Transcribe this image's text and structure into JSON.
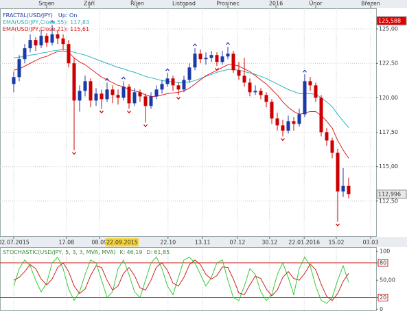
{
  "chart_data": [
    {
      "type": "candlestick",
      "fractal_label": "FRACTAL(USD/JPY)",
      "fractal_setting": "Up: On",
      "up_color": "#1a3aa8",
      "down_color": "#cc0000",
      "xlim": [
        -2.5,
        66
      ],
      "xticks": [
        {
          "value": 0,
          "label": "02.07.2015"
        },
        {
          "value": 9.6,
          "label": "17.08"
        },
        {
          "value": 15.6,
          "label": "08.09"
        },
        {
          "value": 28.1,
          "label": "22.10"
        },
        {
          "value": 34.4,
          "label": "13.11"
        },
        {
          "value": 40.75,
          "label": "07.12"
        },
        {
          "value": 46.6,
          "label": "30.12"
        },
        {
          "value": 52.9,
          "label": "22.01.2016"
        },
        {
          "value": 58.75,
          "label": "15.02"
        },
        {
          "value": 65,
          "label": "03.03"
        }
      ],
      "cursor": {
        "value": 19.75,
        "label": "22.09.2015"
      },
      "x2ticks": [
        {
          "value": 6,
          "label": "Srpen"
        },
        {
          "value": 13.75,
          "label": "Září"
        },
        {
          "value": 22.5,
          "label": "Říjen"
        },
        {
          "value": 31,
          "label": "Listopad"
        },
        {
          "value": 39,
          "label": "Prosinec"
        },
        {
          "value": 47.75,
          "label": "2016"
        },
        {
          "value": 55,
          "label": "Únor"
        },
        {
          "value": 65,
          "label": "Březen"
        }
      ],
      "ylim": [
        109.9,
        126.5
      ],
      "yticks": [
        {
          "value": 125,
          "label": "125,00"
        },
        {
          "value": 122.5,
          "label": "122,50"
        },
        {
          "value": 120,
          "label": "120,00"
        },
        {
          "value": 117.5,
          "label": "117,50"
        },
        {
          "value": 115,
          "label": "115,00"
        },
        {
          "value": 112.5,
          "label": "112,50"
        }
      ],
      "grid": true,
      "price_labels": [
        {
          "value": 125.588,
          "label": "125,588",
          "color": "#e00000"
        },
        {
          "value": 112.996,
          "label": "112,996",
          "color": "#e8e8e8"
        }
      ],
      "open": [
        121.0,
        121.5,
        122.8,
        123.6,
        124.2,
        123.8,
        124.5,
        124.0,
        124.6,
        124.3,
        123.9,
        122.5,
        119.8,
        120.5,
        121.2,
        119.8,
        120.3,
        119.9,
        120.6,
        120.2,
        120.0,
        120.8,
        119.6,
        120.4,
        120.1,
        119.4,
        120.1,
        120.6,
        121.0,
        121.4,
        120.9,
        120.6,
        121.3,
        122.2,
        123.2,
        122.8,
        122.9,
        123.1,
        122.6,
        123.0,
        123.2,
        122.0,
        121.6,
        121.1,
        120.4,
        120.5,
        120.2,
        119.7,
        118.5,
        118.0,
        117.6,
        118.3,
        118.1,
        118.8,
        121.2,
        120.9,
        120.0,
        117.5,
        116.9,
        116.0,
        113.2,
        113.6
      ],
      "high": [
        121.9,
        123.1,
        123.9,
        124.6,
        124.4,
        124.9,
        124.7,
        125.3,
        124.9,
        124.6,
        124.2,
        122.9,
        120.9,
        121.6,
        121.4,
        120.7,
        120.6,
        121.1,
        120.9,
        120.6,
        121.2,
        121.0,
        120.7,
        120.6,
        120.3,
        120.4,
        120.9,
        121.3,
        121.8,
        121.6,
        121.1,
        121.6,
        122.5,
        123.6,
        123.5,
        123.3,
        123.4,
        123.3,
        123.4,
        123.7,
        123.4,
        122.6,
        122.9,
        121.4,
        120.9,
        120.7,
        120.4,
        119.9,
        118.9,
        118.4,
        118.7,
        118.6,
        119.2,
        121.7,
        121.5,
        121.1,
        120.2,
        117.8,
        117.1,
        116.3,
        114.9,
        114.2
      ],
      "low": [
        120.4,
        121.2,
        122.5,
        123.3,
        123.4,
        123.6,
        123.7,
        123.8,
        123.9,
        123.5,
        122.2,
        116.2,
        119.0,
        120.1,
        119.3,
        119.4,
        119.2,
        119.7,
        119.6,
        119.5,
        119.8,
        119.2,
        119.4,
        119.7,
        118.2,
        119.2,
        119.9,
        120.3,
        120.8,
        120.5,
        120.2,
        120.4,
        121.1,
        122.0,
        122.5,
        122.4,
        122.6,
        122.3,
        122.4,
        122.8,
        121.8,
        121.3,
        120.8,
        120.1,
        120.2,
        119.9,
        119.3,
        118.1,
        117.6,
        117.2,
        117.4,
        117.6,
        117.9,
        118.6,
        120.5,
        119.7,
        117.2,
        116.5,
        115.6,
        111.0,
        112.8,
        112.7
      ],
      "close": [
        121.5,
        122.8,
        123.6,
        124.2,
        123.8,
        124.5,
        124.0,
        124.6,
        124.3,
        123.9,
        122.5,
        119.8,
        120.5,
        121.2,
        119.8,
        120.3,
        119.9,
        120.6,
        120.2,
        120.0,
        120.8,
        119.6,
        120.4,
        120.1,
        119.4,
        120.1,
        120.6,
        121.0,
        121.4,
        120.9,
        120.6,
        121.3,
        122.2,
        123.2,
        122.8,
        122.9,
        123.1,
        122.6,
        123.0,
        123.2,
        122.0,
        121.6,
        121.1,
        120.4,
        120.5,
        120.2,
        119.7,
        118.5,
        118.0,
        117.6,
        118.3,
        118.1,
        118.8,
        121.2,
        120.9,
        120.0,
        117.5,
        116.9,
        116.0,
        113.2,
        113.6,
        112.996
      ],
      "series": [
        {
          "name": "EMA(USD/JPY,Close,55):",
          "value_label": "117,83",
          "color": "#2bb3c0",
          "values": [
            122.9,
            122.95,
            123.0,
            123.1,
            123.15,
            123.25,
            123.3,
            123.4,
            123.45,
            123.5,
            123.45,
            123.3,
            123.2,
            123.1,
            122.95,
            122.8,
            122.65,
            122.5,
            122.35,
            122.2,
            122.1,
            121.95,
            121.85,
            121.7,
            121.55,
            121.45,
            121.35,
            121.25,
            121.2,
            121.15,
            121.1,
            121.1,
            121.15,
            121.25,
            121.4,
            121.55,
            121.7,
            121.85,
            121.95,
            122.05,
            122.05,
            122.0,
            121.9,
            121.8,
            121.7,
            121.55,
            121.4,
            121.2,
            121.0,
            120.8,
            120.6,
            120.45,
            120.3,
            120.3,
            120.3,
            120.25,
            120.0,
            119.7,
            119.35,
            118.8,
            118.3,
            117.83
          ]
        },
        {
          "name": "EMA(USD/JPY,Close,21):",
          "value_label": "115,61",
          "color": "#e02020",
          "values": [
            122.0,
            122.1,
            122.3,
            122.5,
            122.7,
            122.9,
            123.0,
            123.2,
            123.35,
            123.4,
            123.3,
            122.9,
            122.6,
            122.4,
            122.1,
            121.8,
            121.5,
            121.3,
            121.1,
            120.9,
            120.8,
            120.6,
            120.5,
            120.4,
            120.2,
            120.1,
            120.1,
            120.2,
            120.3,
            120.35,
            120.4,
            120.5,
            120.7,
            121.0,
            121.3,
            121.6,
            121.8,
            122.0,
            122.2,
            122.4,
            122.4,
            122.3,
            122.1,
            121.9,
            121.6,
            121.3,
            121.0,
            120.6,
            120.2,
            119.7,
            119.3,
            119.0,
            118.8,
            118.9,
            119.0,
            119.0,
            118.7,
            118.3,
            117.8,
            116.9,
            116.2,
            115.61
          ]
        }
      ]
    },
    {
      "type": "line",
      "title": "STOCHASTIC(USD/JPY, 5, 3, 3, MVA, MVA)",
      "xlim": [
        -2.5,
        66
      ],
      "ylim": [
        -2,
        106
      ],
      "yticks": [
        100,
        80,
        {
          "value": 50,
          "label": "50,00"
        },
        20,
        0
      ],
      "levels": [
        80,
        20
      ],
      "level_color": "#cc2222",
      "series": [
        {
          "name": "K:",
          "value_label": "46,19",
          "color": "#33cc33",
          "values": [
            40,
            70,
            85,
            75,
            50,
            30,
            45,
            80,
            90,
            70,
            35,
            15,
            30,
            60,
            85,
            80,
            50,
            20,
            30,
            70,
            85,
            60,
            30,
            20,
            50,
            80,
            90,
            70,
            40,
            25,
            55,
            85,
            90,
            80,
            60,
            40,
            55,
            80,
            85,
            50,
            20,
            15,
            40,
            70,
            60,
            30,
            15,
            25,
            60,
            80,
            55,
            25,
            70,
            90,
            75,
            40,
            15,
            10,
            20,
            50,
            75,
            46.19
          ]
        },
        {
          "name": "D:",
          "value_label": "61,85",
          "color": "#cc2222",
          "values": [
            50,
            55,
            65,
            77,
            70,
            52,
            42,
            52,
            72,
            80,
            65,
            40,
            27,
            35,
            58,
            75,
            72,
            50,
            33,
            40,
            62,
            72,
            58,
            37,
            33,
            50,
            73,
            80,
            67,
            45,
            40,
            55,
            77,
            85,
            77,
            60,
            52,
            58,
            73,
            72,
            52,
            28,
            25,
            42,
            57,
            53,
            35,
            23,
            33,
            55,
            65,
            53,
            50,
            62,
            78,
            68,
            43,
            22,
            15,
            27,
            48,
            61.85
          ]
        }
      ]
    }
  ]
}
